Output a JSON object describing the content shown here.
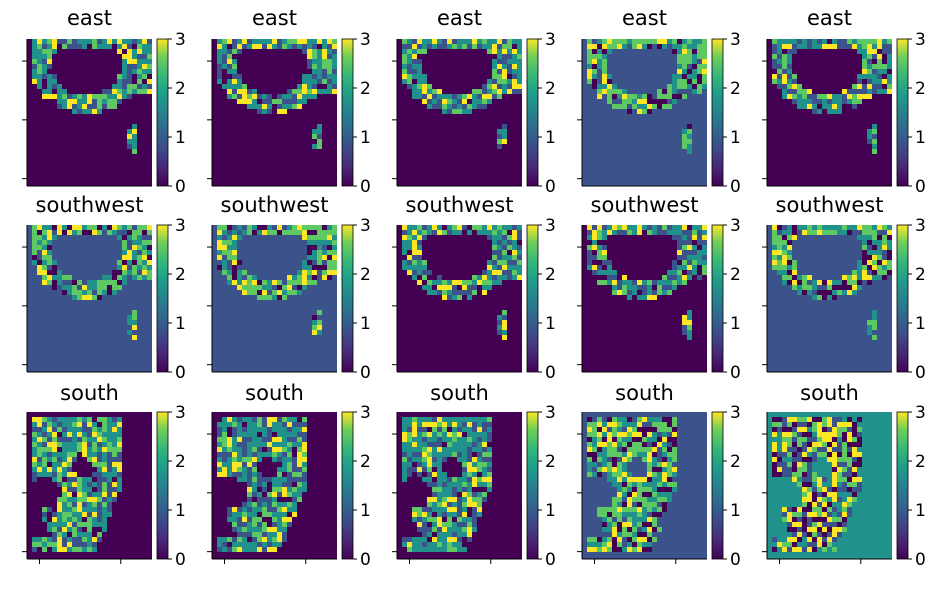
{
  "chart_data": {
    "type": "heatmap",
    "layout": {
      "rows": 3,
      "cols": 5
    },
    "panels": [
      {
        "title": "east",
        "row": 0,
        "col": 0,
        "background": 0,
        "scheme": "north"
      },
      {
        "title": "east",
        "row": 0,
        "col": 1,
        "background": 0,
        "scheme": "north"
      },
      {
        "title": "east",
        "row": 0,
        "col": 2,
        "background": 0,
        "scheme": "north"
      },
      {
        "title": "east",
        "row": 0,
        "col": 3,
        "background": 1,
        "scheme": "north"
      },
      {
        "title": "east",
        "row": 0,
        "col": 4,
        "background": 0,
        "scheme": "north"
      },
      {
        "title": "southwest",
        "row": 1,
        "col": 0,
        "background": 1,
        "scheme": "north"
      },
      {
        "title": "southwest",
        "row": 1,
        "col": 1,
        "background": 1,
        "scheme": "north"
      },
      {
        "title": "southwest",
        "row": 1,
        "col": 2,
        "background": 0,
        "scheme": "north"
      },
      {
        "title": "southwest",
        "row": 1,
        "col": 3,
        "background": 0,
        "scheme": "north"
      },
      {
        "title": "southwest",
        "row": 1,
        "col": 4,
        "background": 1,
        "scheme": "north"
      },
      {
        "title": "south",
        "row": 2,
        "col": 0,
        "background": 0,
        "scheme": "south"
      },
      {
        "title": "south",
        "row": 2,
        "col": 1,
        "background": 0,
        "scheme": "south"
      },
      {
        "title": "south",
        "row": 2,
        "col": 2,
        "background": 0,
        "scheme": "south"
      },
      {
        "title": "south",
        "row": 2,
        "col": 3,
        "background": 1,
        "scheme": "south"
      },
      {
        "title": "south",
        "row": 2,
        "col": 4,
        "background": 2,
        "scheme": "south"
      }
    ],
    "colorbar": {
      "ticks": [
        "0",
        "1",
        "2",
        "3"
      ],
      "range": [
        0,
        3
      ]
    },
    "colormap": "viridis",
    "colors": [
      "#440154",
      "#3b528b",
      "#21918c",
      "#5ec962",
      "#fde725"
    ]
  }
}
